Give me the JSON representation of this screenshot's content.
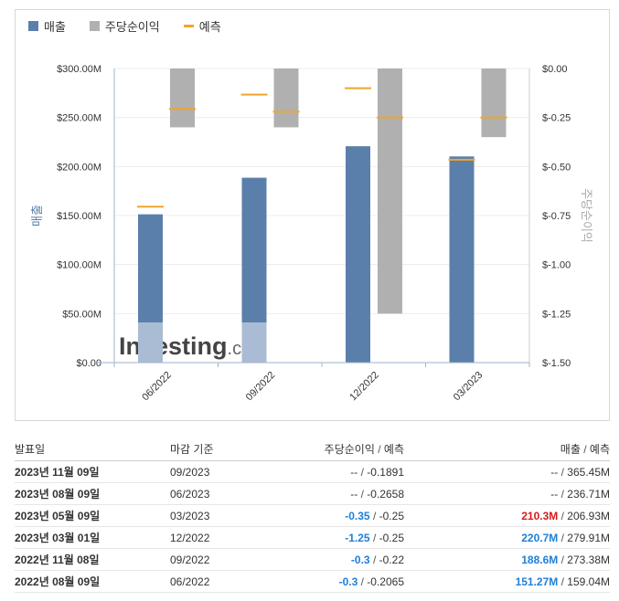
{
  "legend": {
    "revenue": "매출",
    "eps": "주당순이익",
    "forecast": "예측"
  },
  "colors": {
    "revenue": "#5b7fab",
    "revenue_light": "#a9bcd4",
    "eps": "#b0b0b0",
    "forecast": "#f0a52a",
    "left_axis": "#5b7fab",
    "right_axis": "#aaaaaa"
  },
  "watermark": {
    "brand": "Investing",
    "suffix": ".com"
  },
  "chart_data": {
    "type": "bar",
    "categories": [
      "06/2022",
      "09/2022",
      "12/2022",
      "03/2023"
    ],
    "series": [
      {
        "name": "매출",
        "axis": "left",
        "values": [
          151.27,
          188.6,
          220.7,
          210.3
        ],
        "unit": "M USD"
      },
      {
        "name": "주당순이익",
        "axis": "right",
        "values": [
          -0.3,
          -0.3,
          -1.25,
          -0.35
        ]
      },
      {
        "name": "예측",
        "axis": "both",
        "revenue_forecast": [
          159.04,
          273.38,
          279.91,
          206.93
        ],
        "eps_forecast": [
          -0.2065,
          -0.22,
          -0.25,
          -0.25
        ]
      }
    ],
    "left_axis": {
      "label": "매출",
      "range": [
        0,
        300
      ],
      "ticks": [
        "$0.00",
        "$50.00M",
        "$100.00M",
        "$150.00M",
        "$200.00M",
        "$250.00M",
        "$300.00M"
      ]
    },
    "right_axis": {
      "label": "주당순이익",
      "range": [
        -1.5,
        0
      ],
      "ticks": [
        "$0.00",
        "$-0.25",
        "$-0.50",
        "$-0.75",
        "$-1.00",
        "$-1.25",
        "$-1.50"
      ]
    },
    "grid": true,
    "legend_position": "top-left"
  },
  "table": {
    "headers": {
      "date": "발표일",
      "period": "마감 기준",
      "eps": "주당순이익",
      "eps_forecast": "예측",
      "revenue": "매출",
      "revenue_forecast": "예측",
      "sep": "/"
    },
    "rows": [
      {
        "date": "2023년 11월 09일",
        "period": "09/2023",
        "eps": "--",
        "eps_forecast": "-0.1891",
        "revenue": "--",
        "revenue_forecast": "365.45M",
        "eps_style": "",
        "rev_style": ""
      },
      {
        "date": "2023년 08월 09일",
        "period": "06/2023",
        "eps": "--",
        "eps_forecast": "-0.2658",
        "revenue": "--",
        "revenue_forecast": "236.71M",
        "eps_style": "",
        "rev_style": ""
      },
      {
        "date": "2023년 05월 09일",
        "period": "03/2023",
        "eps": "-0.35",
        "eps_forecast": "-0.25",
        "revenue": "210.3M",
        "revenue_forecast": "206.93M",
        "eps_style": "blue",
        "rev_style": "red"
      },
      {
        "date": "2023년 03월 01일",
        "period": "12/2022",
        "eps": "-1.25",
        "eps_forecast": "-0.25",
        "revenue": "220.7M",
        "revenue_forecast": "279.91M",
        "eps_style": "blue",
        "rev_style": "blue"
      },
      {
        "date": "2022년 11월 08일",
        "period": "09/2022",
        "eps": "-0.3",
        "eps_forecast": "-0.22",
        "revenue": "188.6M",
        "revenue_forecast": "273.38M",
        "eps_style": "blue",
        "rev_style": "blue"
      },
      {
        "date": "2022년 08월 09일",
        "period": "06/2022",
        "eps": "-0.3",
        "eps_forecast": "-0.2065",
        "revenue": "151.27M",
        "revenue_forecast": "159.04M",
        "eps_style": "blue",
        "rev_style": "blue"
      }
    ]
  }
}
